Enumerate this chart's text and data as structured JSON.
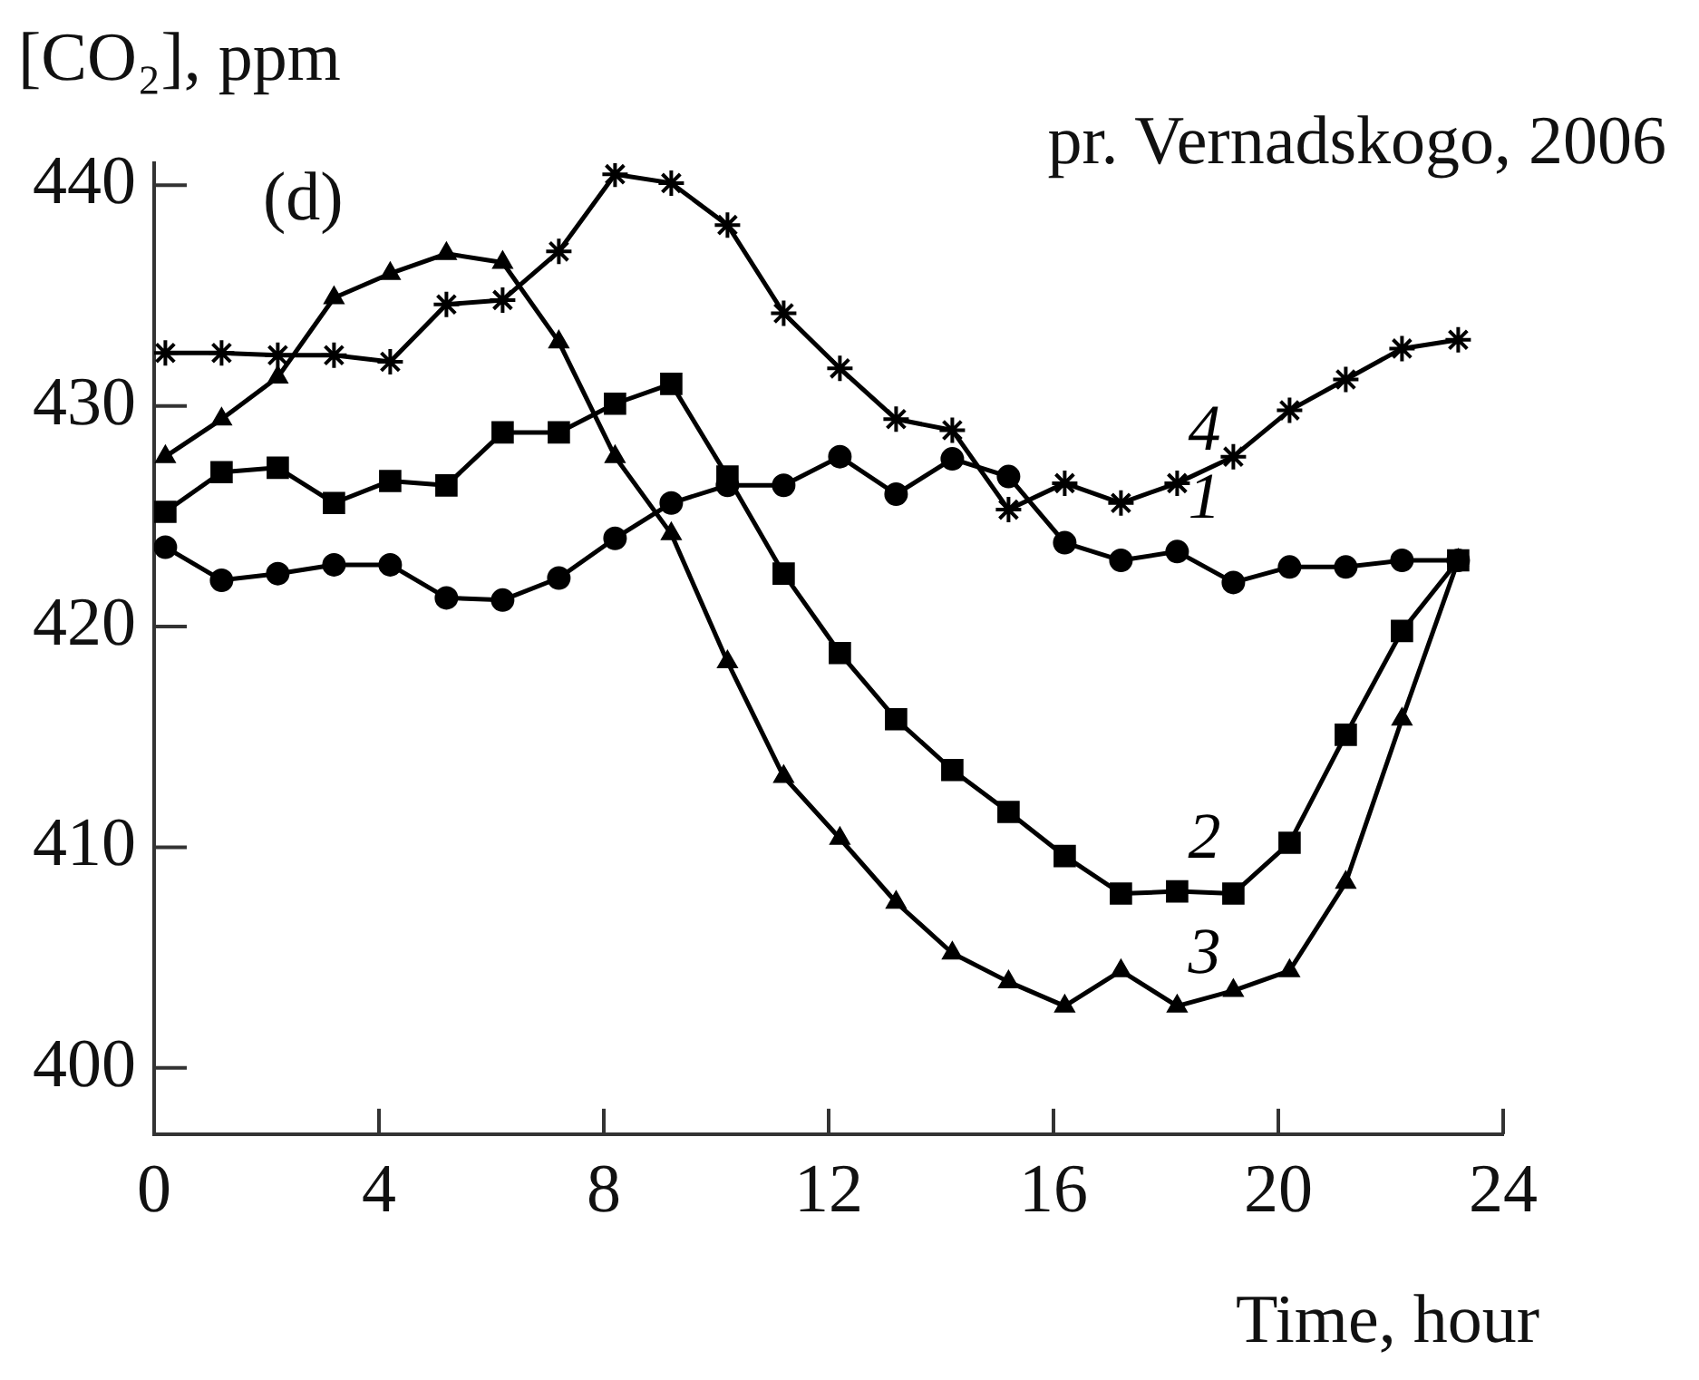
{
  "chart_data": {
    "type": "line",
    "title": "pr. Vernadskogo, 2006",
    "xlabel": "Time, hour",
    "ylabel": "[CO₂], ppm",
    "xlim": [
      0,
      24
    ],
    "xticks": [
      0,
      4,
      8,
      12,
      16,
      20,
      24
    ],
    "ylim": [
      397,
      441
    ],
    "yticks": [
      400,
      410,
      420,
      430,
      440
    ],
    "grid": false,
    "legend": false,
    "line_style": "solid",
    "x": [
      0.2,
      1.2,
      2.2,
      3.2,
      4.2,
      5.2,
      6.2,
      7.2,
      8.2,
      9.2,
      10.2,
      11.2,
      12.2,
      13.2,
      14.2,
      15.2,
      16.2,
      17.2,
      18.2,
      19.2,
      20.2,
      21.2,
      22.2,
      23.2
    ],
    "series": [
      {
        "name": "1",
        "color": "#000000",
        "marker": "circle",
        "values": [
          423.6,
          422.1,
          422.4,
          422.8,
          422.8,
          421.3,
          421.2,
          422.2,
          424.0,
          425.6,
          426.4,
          426.4,
          427.7,
          426.0,
          427.6,
          426.8,
          423.8,
          423.0,
          423.4,
          422.0,
          422.7,
          422.7,
          423.0,
          423.0
        ]
      },
      {
        "name": "2",
        "color": "#000000",
        "marker": "square",
        "values": [
          425.2,
          427.0,
          427.2,
          425.6,
          426.6,
          426.4,
          428.8,
          428.8,
          430.1,
          431.0,
          426.8,
          422.4,
          418.8,
          415.8,
          413.5,
          411.6,
          409.6,
          407.9,
          408.0,
          407.9,
          410.2,
          415.1,
          419.8,
          423.0
        ]
      },
      {
        "name": "3",
        "color": "#000000",
        "marker": "triangle",
        "values": [
          427.7,
          429.4,
          431.3,
          434.9,
          436.0,
          436.9,
          436.5,
          432.9,
          427.7,
          424.2,
          418.4,
          413.2,
          410.4,
          407.5,
          405.2,
          403.9,
          402.8,
          404.4,
          402.8,
          403.5,
          404.4,
          408.4,
          415.8,
          423.0
        ]
      },
      {
        "name": "4",
        "color": "#000000",
        "marker": "cross",
        "values": [
          432.4,
          432.4,
          432.3,
          432.3,
          432.0,
          434.6,
          434.8,
          437.0,
          440.5,
          440.1,
          438.2,
          434.2,
          431.7,
          429.4,
          428.9,
          425.3,
          426.5,
          425.6,
          426.5,
          427.7,
          429.8,
          431.2,
          432.6,
          433.0
        ]
      }
    ],
    "annotations": [
      "(d)"
    ]
  }
}
